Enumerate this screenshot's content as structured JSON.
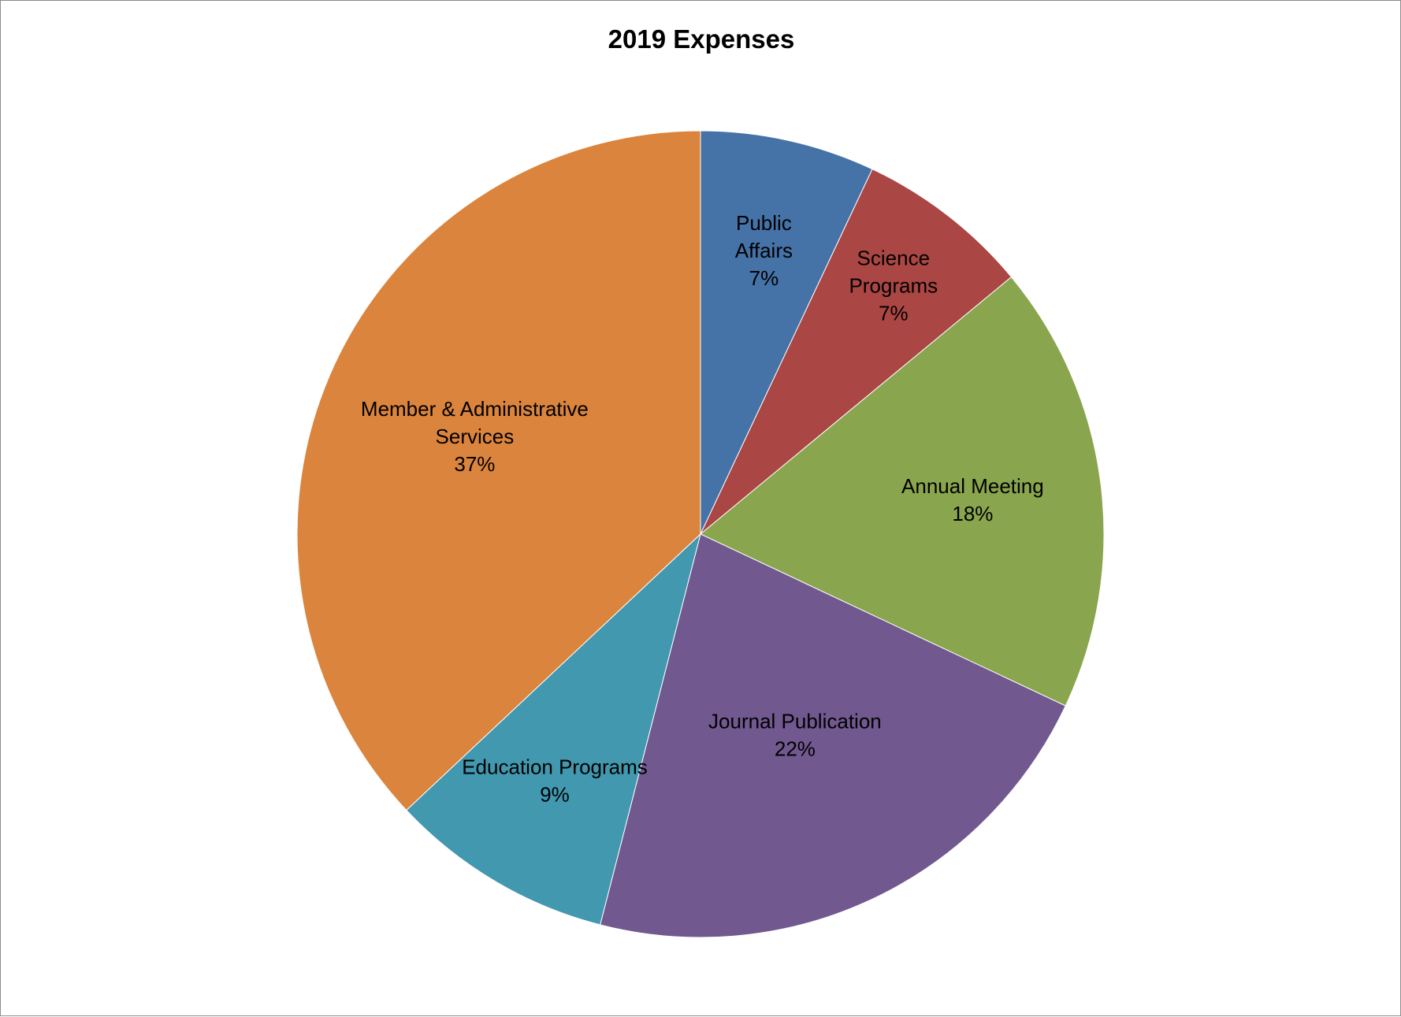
{
  "chart_data": {
    "type": "pie",
    "title": "2019 Expenses",
    "start_angle_deg": 0,
    "direction": "clockwise",
    "slices": [
      {
        "name": "Public Affairs",
        "label_lines": [
          "Public",
          "Affairs",
          "7%"
        ],
        "value": 7,
        "percent_label": "7%",
        "color": "#4572A7"
      },
      {
        "name": "Science Programs",
        "label_lines": [
          "Science",
          "Programs",
          "7%"
        ],
        "value": 7,
        "percent_label": "7%",
        "color": "#AA4643"
      },
      {
        "name": "Annual Meeting",
        "label_lines": [
          "Annual Meeting",
          "18%"
        ],
        "value": 18,
        "percent_label": "18%",
        "color": "#89A54E"
      },
      {
        "name": "Journal Publication",
        "label_lines": [
          "Journal Publication",
          "22%"
        ],
        "value": 22,
        "percent_label": "22%",
        "color": "#71588F"
      },
      {
        "name": "Education Programs",
        "label_lines": [
          "Education Programs",
          "9%"
        ],
        "value": 9,
        "percent_label": "9%",
        "color": "#4198AF"
      },
      {
        "name": "Member & Administrative Services",
        "label_lines": [
          "Member & Administrative",
          "Services",
          "37%"
        ],
        "value": 37,
        "percent_label": "37%",
        "color": "#DB843D"
      }
    ]
  }
}
